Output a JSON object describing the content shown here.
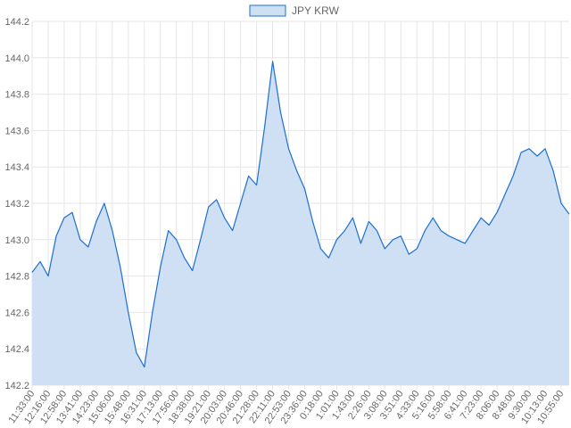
{
  "chart_data": {
    "type": "area",
    "legend": {
      "label": "JPY KRW",
      "position": "top-center"
    },
    "colors": {
      "line": "#1c6fd1",
      "fill": "#cfe0f5",
      "grid": "#e6e6e6",
      "text": "#666666"
    },
    "grid": true,
    "ylim": [
      142.2,
      144.2
    ],
    "y_ticks": [
      "144.2",
      "144.0",
      "143.8",
      "143.6",
      "143.4",
      "143.2",
      "143.0",
      "142.8",
      "142.6",
      "142.4",
      "142.2"
    ],
    "x_ticks": [
      "11:33:00",
      "12:16:00",
      "12:58:00",
      "13:41:00",
      "14:23:00",
      "15:06:00",
      "15:48:00",
      "16:31:00",
      "17:13:00",
      "17:56:00",
      "18:38:00",
      "19:21:00",
      "20:03:00",
      "20:46:00",
      "21:28:00",
      "22:11:00",
      "22:53:00",
      "23:36:00",
      "0:18:00",
      "1:01:00",
      "1:43:00",
      "2:26:00",
      "3:08:00",
      "3:51:00",
      "4:33:00",
      "5:16:00",
      "5:58:00",
      "6:41:00",
      "7:23:00",
      "8:06:00",
      "8:48:00",
      "9:30:00",
      "10:13:00",
      "10:55:00"
    ],
    "series": [
      {
        "name": "JPY KRW",
        "x": [
          "11:33:00",
          "11:54:00",
          "12:16:00",
          "12:37:00",
          "12:58:00",
          "13:19:00",
          "13:41:00",
          "14:02:00",
          "14:23:00",
          "14:44:00",
          "15:06:00",
          "15:27:00",
          "15:48:00",
          "16:09:00",
          "16:31:00",
          "16:52:00",
          "17:13:00",
          "17:34:00",
          "17:56:00",
          "18:17:00",
          "18:38:00",
          "18:59:00",
          "19:21:00",
          "19:42:00",
          "20:03:00",
          "20:24:00",
          "20:46:00",
          "21:07:00",
          "21:28:00",
          "21:49:00",
          "22:11:00",
          "22:32:00",
          "22:53:00",
          "23:14:00",
          "23:36:00",
          "23:57:00",
          "0:18:00",
          "0:39:00",
          "1:01:00",
          "1:22:00",
          "1:43:00",
          "2:04:00",
          "2:26:00",
          "2:47:00",
          "3:08:00",
          "3:29:00",
          "3:51:00",
          "4:12:00",
          "4:33:00",
          "4:54:00",
          "5:16:00",
          "5:37:00",
          "5:58:00",
          "6:19:00",
          "6:41:00",
          "7:02:00",
          "7:23:00",
          "7:44:00",
          "8:06:00",
          "8:27:00",
          "8:48:00",
          "9:09:00",
          "9:30:00",
          "9:51:00",
          "10:13:00",
          "10:34:00",
          "10:55:00",
          "11:16:00"
        ],
        "values": [
          142.82,
          142.88,
          142.8,
          143.02,
          143.12,
          143.15,
          143.0,
          142.96,
          143.1,
          143.2,
          143.05,
          142.85,
          142.6,
          142.38,
          142.3,
          142.6,
          142.85,
          143.05,
          143.0,
          142.9,
          142.83,
          143.0,
          143.18,
          143.22,
          143.12,
          143.05,
          143.2,
          143.35,
          143.3,
          143.62,
          143.98,
          143.7,
          143.5,
          143.38,
          143.28,
          143.1,
          142.95,
          142.9,
          143.0,
          143.05,
          143.12,
          142.98,
          143.1,
          143.05,
          142.95,
          143.0,
          143.02,
          142.92,
          142.95,
          143.05,
          143.12,
          143.05,
          143.02,
          143.0,
          142.98,
          143.05,
          143.12,
          143.08,
          143.15,
          143.25,
          143.35,
          143.48,
          143.5,
          143.46,
          143.5,
          143.38,
          143.2,
          143.14
        ]
      }
    ]
  }
}
